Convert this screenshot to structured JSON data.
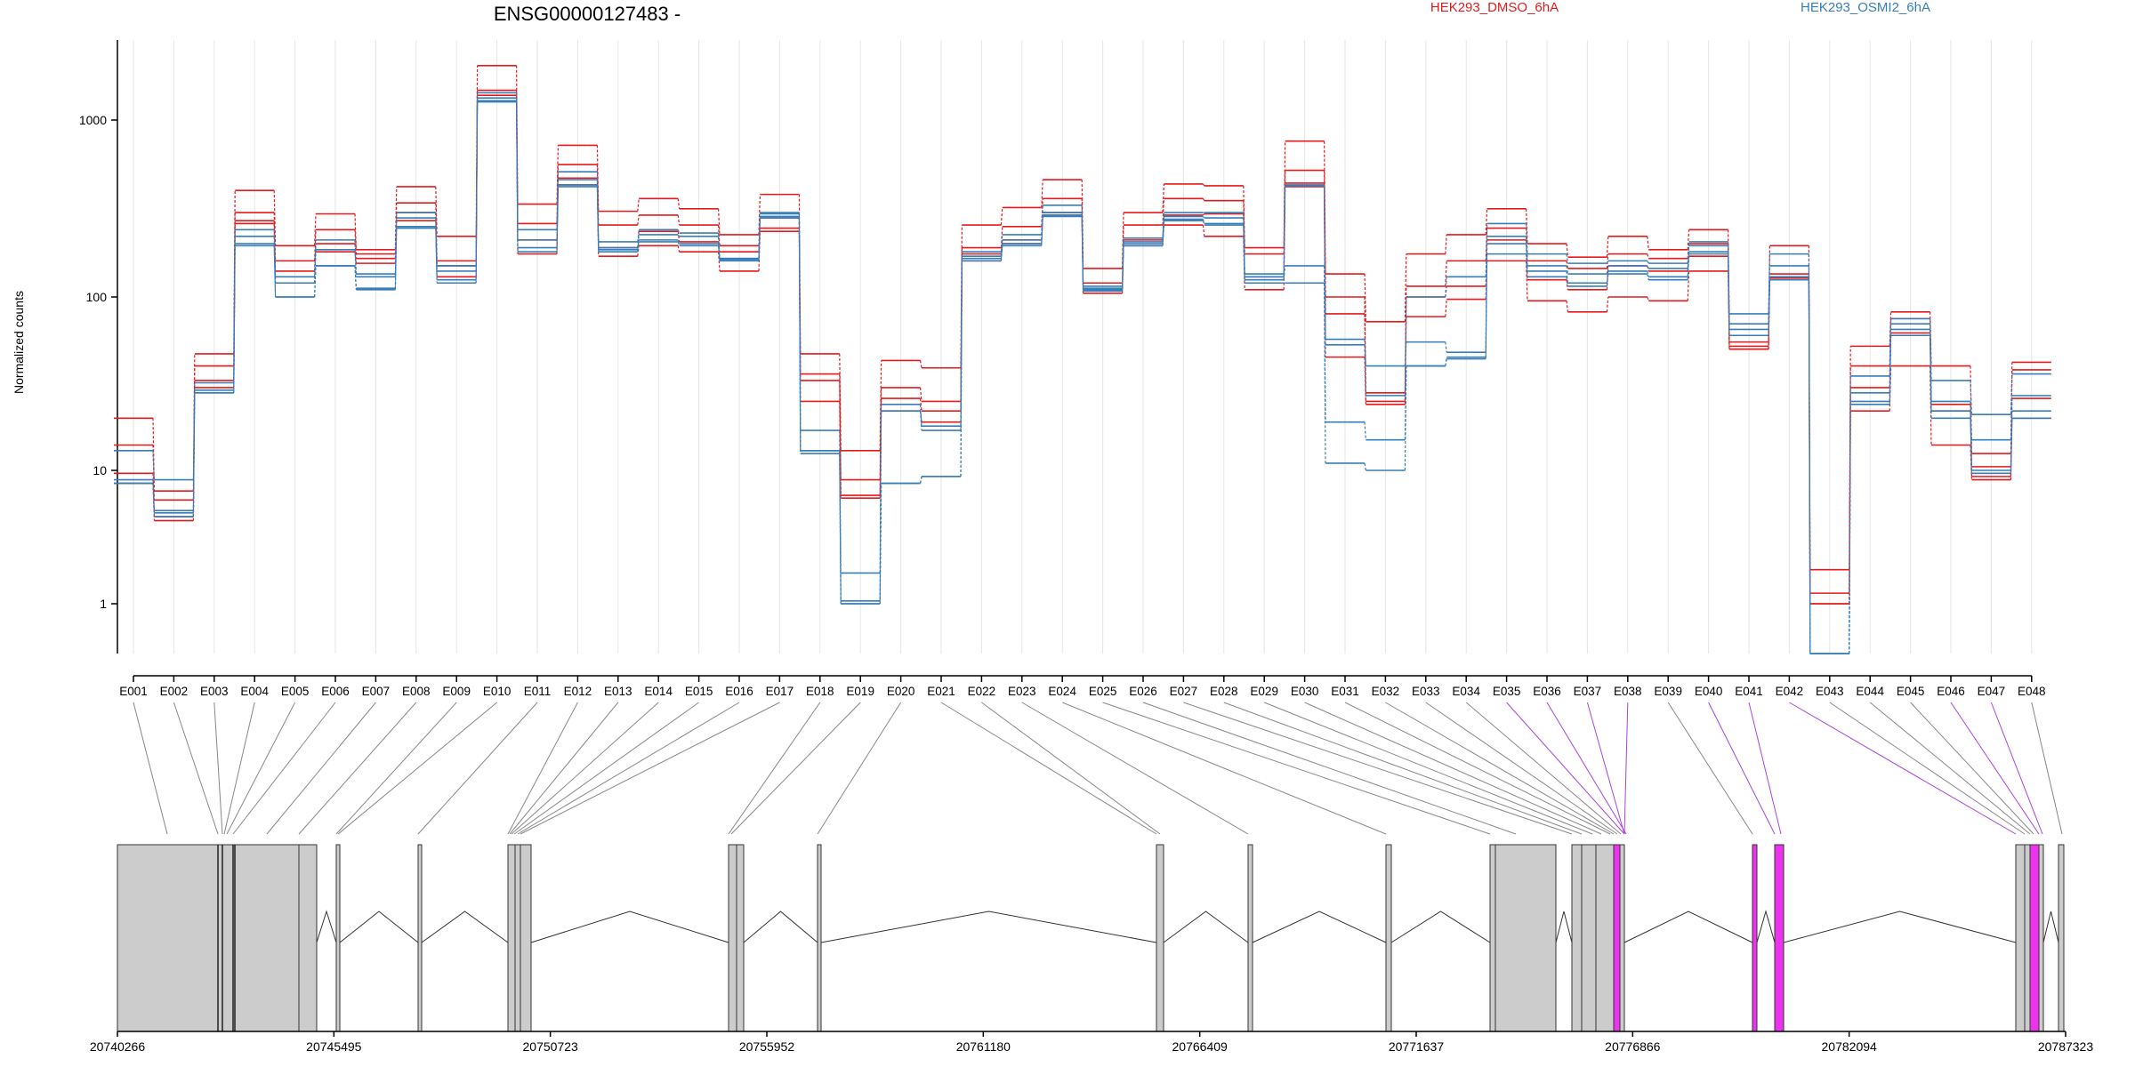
{
  "chart_data": {
    "type": "line",
    "title": "ENSG00000127483 -",
    "ylabel": "Normalized counts",
    "yscale": "log",
    "ylim": [
      0.4,
      3000
    ],
    "yticks": [
      "1",
      "10",
      "100",
      "1000"
    ],
    "legend": [
      {
        "name": "HEK293_DMSO_6hA",
        "color": "#e41a1c"
      },
      {
        "name": "HEK293_OSMI2_6hA",
        "color": "#377eb8"
      }
    ],
    "exons": [
      "E001",
      "E002",
      "E003",
      "E004",
      "E005",
      "E006",
      "E007",
      "E008",
      "E009",
      "E010",
      "E011",
      "E012",
      "E013",
      "E014",
      "E015",
      "E016",
      "E017",
      "E018",
      "E019",
      "E020",
      "E021",
      "E022",
      "E023",
      "E024",
      "E025",
      "E026",
      "E027",
      "E028",
      "E029",
      "E030",
      "E031",
      "E032",
      "E033",
      "E034",
      "E035",
      "E036",
      "E037",
      "E038",
      "E039",
      "E040",
      "E041",
      "E042",
      "E043",
      "E044",
      "E045",
      "E046",
      "E047",
      "E048"
    ],
    "series": [
      {
        "group": "HEK293_DMSO_6hA",
        "color": "#e41a1c",
        "values": [
          20,
          7,
          47,
          400,
          195,
          295,
          185,
          420,
          220,
          2100,
          335,
          720,
          305,
          360,
          315,
          225,
          380,
          47,
          13,
          43,
          39,
          255,
          320,
          460,
          145,
          300,
          435,
          425,
          190,
          760,
          135,
          72,
          175,
          225,
          315,
          200,
          168,
          220,
          185,
          240,
          55,
          195,
          1.8,
          52,
          82,
          40,
          12.5,
          42
        ]
      },
      {
        "group": "HEK293_DMSO_6hA",
        "color": "#e41a1c",
        "values": [
          14,
          6,
          40,
          300,
          160,
          240,
          175,
          340,
          160,
          1500,
          260,
          560,
          255,
          290,
          255,
          195,
          280,
          36,
          8.5,
          30,
          25,
          190,
          250,
          360,
          120,
          255,
          360,
          350,
          175,
          520,
          100,
          28,
          115,
          160,
          245,
          160,
          145,
          175,
          165,
          200,
          52,
          135,
          1.2,
          40,
          75,
          24,
          10.5,
          38
        ]
      },
      {
        "group": "HEK293_DMSO_6hA",
        "color": "#e41a1c",
        "values": [
          9.5,
          4.5,
          33,
          270,
          140,
          200,
          165,
          300,
          150,
          1400,
          210,
          470,
          190,
          235,
          205,
          180,
          245,
          33,
          6.5,
          26,
          22,
          175,
          210,
          300,
          110,
          210,
          290,
          295,
          130,
          440,
          80,
          25,
          100,
          115,
          210,
          125,
          110,
          150,
          140,
          170,
          50,
          130,
          1.0,
          30,
          62,
          22,
          9,
          26
        ]
      },
      {
        "group": "HEK293_DMSO_6hA",
        "color": "#e41a1c",
        "values": [
          8,
          4.2,
          30,
          260,
          120,
          180,
          155,
          270,
          130,
          1300,
          175,
          430,
          170,
          195,
          180,
          140,
          235,
          25,
          6.2,
          22,
          19,
          160,
          200,
          290,
          105,
          195,
          255,
          220,
          110,
          420,
          45,
          24,
          77,
          97,
          160,
          95,
          82,
          100,
          95,
          140,
          50,
          128,
          1.0,
          22,
          40,
          14,
          8.5,
          20
        ]
      },
      {
        "group": "HEK293_OSMI2_6hA",
        "color": "#377eb8",
        "values": [
          13,
          8.5,
          32,
          240,
          130,
          210,
          135,
          300,
          150,
          1450,
          240,
          510,
          205,
          240,
          230,
          165,
          300,
          17,
          1.7,
          24,
          18,
          180,
          225,
          330,
          115,
          215,
          300,
          300,
          135,
          430,
          57,
          40,
          55,
          48,
          260,
          175,
          155,
          160,
          155,
          205,
          80,
          175,
          0.5,
          35,
          75,
          33,
          21,
          36
        ]
      },
      {
        "group": "HEK293_OSMI2_6hA",
        "color": "#377eb8",
        "values": [
          8.5,
          5,
          29,
          220,
          120,
          185,
          130,
          280,
          140,
          1350,
          210,
          460,
          190,
          225,
          220,
          165,
          295,
          13,
          1.05,
          22,
          17,
          170,
          210,
          300,
          112,
          205,
          285,
          280,
          130,
          425,
          53,
          27,
          100,
          130,
          220,
          150,
          135,
          150,
          145,
          195,
          70,
          150,
          0.5,
          28,
          70,
          25,
          15,
          27
        ]
      },
      {
        "group": "HEK293_OSMI2_6hA",
        "color": "#377eb8",
        "values": [
          8,
          4.8,
          28,
          200,
          100,
          150,
          112,
          250,
          125,
          1300,
          190,
          430,
          185,
          210,
          200,
          163,
          285,
          13,
          1.0,
          8,
          9,
          165,
          200,
          290,
          110,
          200,
          275,
          260,
          125,
          150,
          19,
          15,
          40,
          45,
          200,
          140,
          120,
          140,
          130,
          180,
          65,
          130,
          0.5,
          25,
          65,
          22,
          10,
          22
        ]
      },
      {
        "group": "HEK293_OSMI2_6hA",
        "color": "#377eb8",
        "values": [
          8,
          4.5,
          28,
          195,
          100,
          150,
          110,
          245,
          120,
          1280,
          180,
          420,
          180,
          205,
          195,
          160,
          280,
          12.5,
          1.0,
          8,
          9,
          160,
          195,
          285,
          108,
          195,
          270,
          255,
          120,
          120,
          11,
          10,
          40,
          44,
          175,
          130,
          115,
          135,
          125,
          175,
          60,
          125,
          0.5,
          24,
          60,
          20,
          9.5,
          20
        ]
      }
    ],
    "gene_coords": {
      "ticks": [
        "20740266",
        "20745495",
        "20750723",
        "20755952",
        "20761180",
        "20766409",
        "20771637",
        "20776866",
        "20782094",
        "20787323"
      ]
    }
  }
}
